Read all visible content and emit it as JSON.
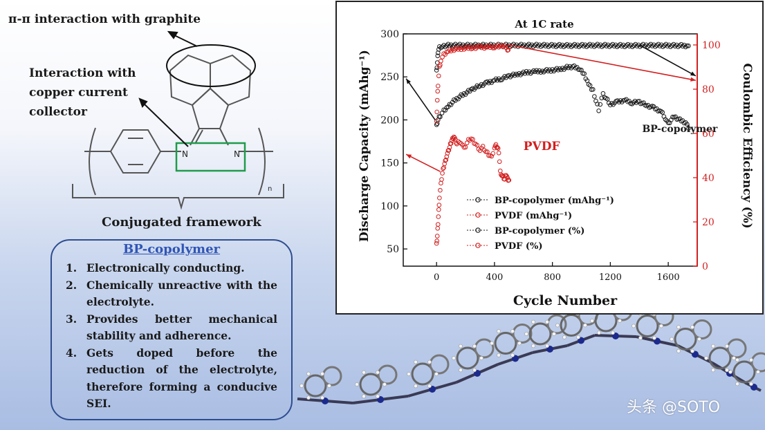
{
  "left_panel": {
    "pi_label": "π-π interaction with graphite",
    "cu_label_lines": [
      "Interaction with",
      "copper current",
      "collector"
    ],
    "n_atom": "N",
    "repeat_subscript": "n",
    "framework_label": "Conjugated framework",
    "properties_title": "BP-copolymer",
    "properties": [
      {
        "num": "1.",
        "text": "Electronically conducting."
      },
      {
        "num": "2.",
        "text": "Chemically unreactive with the electrolyte."
      },
      {
        "num": "3.",
        "text": "Provides better mechanical stability and adherence."
      },
      {
        "num": "4.",
        "text": "Gets doped before the reduction of the electrolyte, therefore forming a conducive SEI."
      }
    ]
  },
  "watermark": "头条 @SOTO",
  "chart_data": {
    "type": "scatter",
    "title": "At 1C rate",
    "xlabel": "Cycle Number",
    "ylabel_left": "Discharge Capacity (mAhg⁻¹)",
    "ylabel_right": "Coulombic Efficiency (%)",
    "xlim": [
      -230,
      1800
    ],
    "ylim_left": [
      30,
      300
    ],
    "ylim_right": [
      0,
      105
    ],
    "x_ticks": [
      0,
      400,
      800,
      1200,
      1600
    ],
    "y_left_ticks": [
      50,
      100,
      150,
      200,
      250,
      300
    ],
    "y_right_ticks": [
      0,
      20,
      40,
      60,
      80,
      100
    ],
    "colors": {
      "bp": "#1a1a1a",
      "pvdf": "#d21f1f"
    },
    "annotations": [
      {
        "text": "BP-copolymer",
        "series": "BP-copolymer (mAhg⁻¹)",
        "x": 1420,
        "y": 186
      },
      {
        "text": "PVDF",
        "series": "PVDF (mAhg⁻¹)",
        "x": 600,
        "y": 165
      }
    ],
    "legend": {
      "position": "center-left",
      "entries": [
        "BP-copolymer (mAhg⁻¹)",
        "PVDF (mAhg⁻¹)",
        "BP-copolymer (%)",
        "PVDF (%)"
      ]
    },
    "series": [
      {
        "name": "BP-copolymer (mAhg⁻¹)",
        "axis": "left",
        "color": "#1a1a1a",
        "x": [
          0,
          10,
          25,
          50,
          80,
          120,
          160,
          200,
          250,
          300,
          350,
          400,
          450,
          500,
          560,
          620,
          680,
          740,
          800,
          860,
          900,
          940,
          980,
          1020,
          1050,
          1080,
          1100,
          1120,
          1150,
          1200,
          1250,
          1300,
          1350,
          1400,
          1450,
          1500,
          1550,
          1580,
          1600,
          1640,
          1680,
          1720,
          1740
        ],
        "y": [
          193,
          200,
          205,
          211,
          216,
          222,
          227,
          231,
          236,
          240,
          243,
          246,
          248,
          251,
          253,
          255,
          256,
          257,
          258,
          259,
          261,
          262,
          260,
          253,
          242,
          234,
          222,
          212,
          230,
          218,
          221,
          223,
          220,
          221,
          217,
          214,
          210,
          202,
          196,
          204,
          200,
          197,
          190
        ]
      },
      {
        "name": "PVDF (mAhg⁻¹)",
        "axis": "left",
        "color": "#d21f1f",
        "x": [
          0,
          5,
          10,
          15,
          20,
          30,
          40,
          50,
          60,
          70,
          80,
          90,
          100,
          110,
          120,
          130,
          140,
          160,
          180,
          200,
          220,
          240,
          260,
          280,
          300,
          320,
          340,
          360,
          380,
          400,
          410,
          420,
          430,
          440,
          450,
          460,
          470,
          480,
          490,
          500
        ],
        "y": [
          55,
          65,
          80,
          95,
          110,
          125,
          138,
          146,
          152,
          158,
          163,
          168,
          174,
          178,
          181,
          176,
          172,
          175,
          170,
          169,
          176,
          178,
          174,
          170,
          165,
          168,
          163,
          160,
          157,
          168,
          170,
          168,
          163,
          140,
          136,
          133,
          131,
          137,
          132,
          130
        ]
      },
      {
        "name": "BP-copolymer (%)",
        "axis": "right",
        "color": "#1a1a1a",
        "x": [
          0,
          5,
          10,
          20,
          40,
          80,
          150,
          300,
          500,
          700,
          900,
          1100,
          1300,
          1500,
          1700,
          1740
        ],
        "y": [
          88,
          92,
          97,
          99,
          99.5,
          99.8,
          99.8,
          99.8,
          99.8,
          99.8,
          99.7,
          99.8,
          99.7,
          99.8,
          99.7,
          99.6
        ]
      },
      {
        "name": "PVDF (%)",
        "axis": "right",
        "color": "#d21f1f",
        "x": [
          0,
          5,
          10,
          20,
          30,
          50,
          80,
          120,
          180,
          250,
          300,
          350,
          400,
          450,
          470,
          490,
          500
        ],
        "y": [
          65,
          75,
          82,
          90,
          93,
          95.5,
          97,
          98,
          98.5,
          98.8,
          99,
          99,
          99.2,
          99.3,
          100,
          97,
          99
        ]
      }
    ]
  }
}
